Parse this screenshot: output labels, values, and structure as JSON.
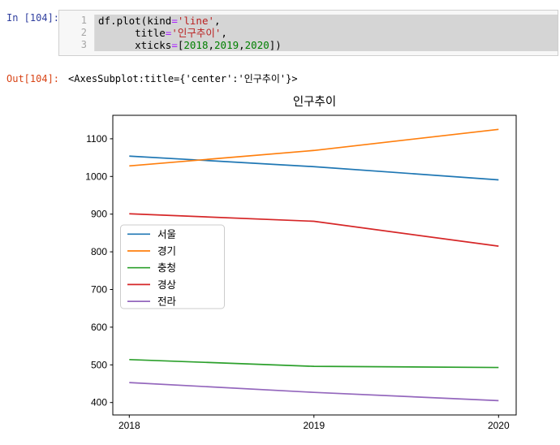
{
  "cell": {
    "in_prompt": "In [104]:",
    "out_prompt": "Out[104]:",
    "out_text": "<AxesSubplot:title={'center':'인구추이'}>",
    "code_lines": [
      {
        "num": "1",
        "tokens": [
          [
            "p",
            "df.plot(kind"
          ],
          [
            "o",
            "="
          ],
          [
            "s",
            "'line'"
          ],
          [
            "p",
            ","
          ]
        ]
      },
      {
        "num": "2",
        "tokens": [
          [
            "p",
            "      title"
          ],
          [
            "o",
            "="
          ],
          [
            "s",
            "'인구추이'"
          ],
          [
            "p",
            ","
          ]
        ]
      },
      {
        "num": "3",
        "tokens": [
          [
            "p",
            "      xticks"
          ],
          [
            "o",
            "="
          ],
          [
            "p",
            "["
          ],
          [
            "n",
            "2018"
          ],
          [
            "p",
            ","
          ],
          [
            "n",
            "2019"
          ],
          [
            "p",
            ","
          ],
          [
            "n",
            "2020"
          ],
          [
            "p",
            "])"
          ]
        ]
      }
    ]
  },
  "chart_data": {
    "type": "line",
    "title": "인구추이",
    "x": [
      2018,
      2019,
      2020
    ],
    "xticks": [
      2018,
      2019,
      2020
    ],
    "yticks": [
      400,
      500,
      600,
      700,
      800,
      900,
      1000,
      1100
    ],
    "xlim": [
      2017.9,
      2020.1
    ],
    "ylim": [
      367,
      1162
    ],
    "grid": false,
    "legend_position": "center-left",
    "series": [
      {
        "name": "서울",
        "color": "#1f77b4",
        "values": [
          1054,
          1026,
          991
        ]
      },
      {
        "name": "경기",
        "color": "#ff7f0e",
        "values": [
          1028,
          1069,
          1125
        ]
      },
      {
        "name": "충청",
        "color": "#2ca02c",
        "values": [
          514,
          496,
          493
        ]
      },
      {
        "name": "경상",
        "color": "#d62728",
        "values": [
          901,
          881,
          815
        ]
      },
      {
        "name": "전라",
        "color": "#9467bd",
        "values": [
          453,
          427,
          405
        ]
      }
    ],
    "colors": {
      "axis": "#000000",
      "tick_label": "#000000",
      "legend_border": "#cccccc",
      "background": "#ffffff"
    }
  }
}
